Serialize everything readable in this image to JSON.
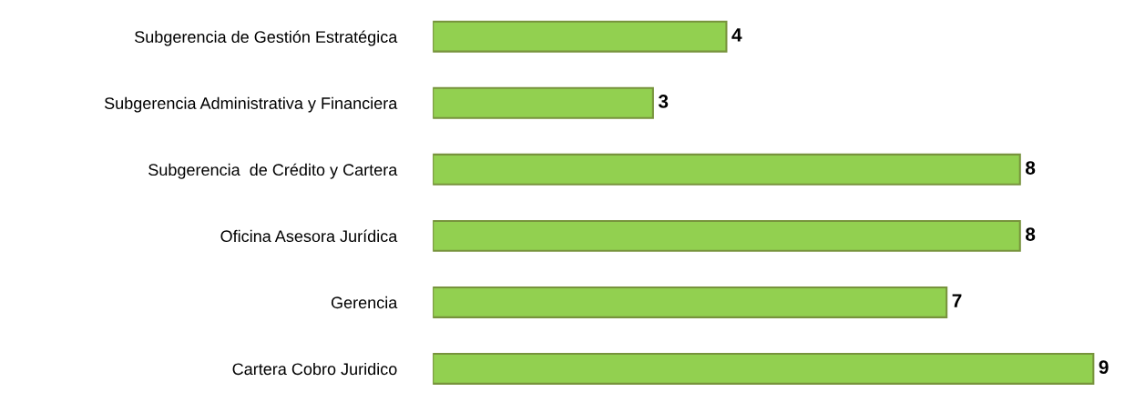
{
  "chart_data": {
    "type": "bar",
    "orientation": "horizontal",
    "categories": [
      "Subgerencia de Gestión Estratégica",
      "Subgerencia Administrativa y Financiera",
      "Subgerencia  de Crédito y Cartera",
      "Oficina Asesora Jurídica",
      "Gerencia",
      "Cartera Cobro Juridico"
    ],
    "values": [
      4,
      3,
      8,
      8,
      7,
      9
    ],
    "color": "#92d050",
    "data_labels": true,
    "grid": false,
    "legend": false
  }
}
